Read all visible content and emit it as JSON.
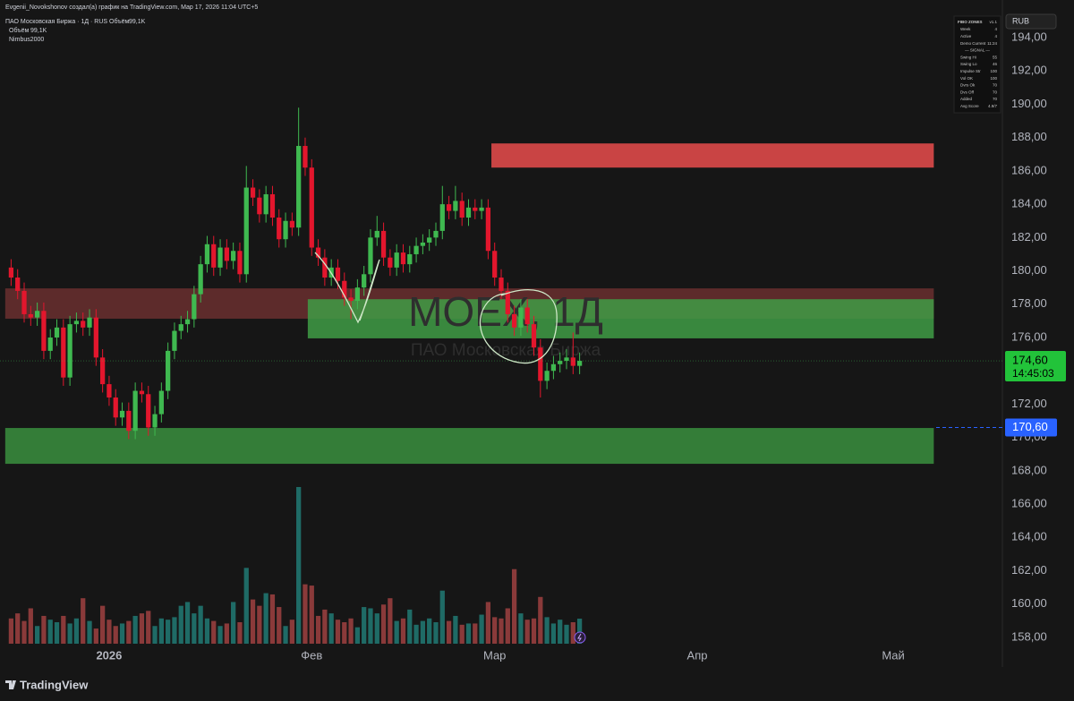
{
  "header": {
    "author_line": "Evgenii_Novokshonov создал(а) график на TradingView.com, Мар 17, 2026 11:04 UTC+5",
    "symbol": "ПАО Московская Биржа · 1Д · RUS",
    "volume_label": "Объём",
    "volume_value": "99,1K",
    "volume_label2": "Объём",
    "volume_value2": "99,1K",
    "indicator": "Nimbus2000",
    "currency": "RUB"
  },
  "watermark": {
    "ticker": "MOEX, 1Д",
    "name": "ПАО Московская Биржа"
  },
  "fibo_table": {
    "title": "FIBO ZONES",
    "version": "v1.1",
    "separator": "— SIGNAL —",
    "rows": [
      [
        "Week",
        "4"
      ],
      [
        "Active",
        "4"
      ],
      [
        "Demo Current",
        "11:24"
      ],
      [
        "Swing Hi",
        "55"
      ],
      [
        "Swing Lo",
        "46"
      ],
      [
        "Impulse Str",
        "100"
      ],
      [
        "Vol OK",
        "100"
      ],
      [
        "Dvrs Ok",
        "70"
      ],
      [
        "Dvs Off",
        "70"
      ],
      [
        "Added",
        "70"
      ],
      [
        "Avg Score",
        "4.9/7"
      ]
    ]
  },
  "chart_data": {
    "type": "candlestick",
    "x": [
      -15,
      -14,
      -13,
      -12,
      -11,
      -10,
      -9,
      -8,
      -7,
      -6,
      -5,
      -4,
      -3,
      -2,
      -1,
      0,
      1,
      2,
      3,
      4,
      5,
      6,
      7,
      8,
      9,
      10,
      11,
      12,
      13,
      14,
      15,
      16,
      17,
      18,
      19,
      20,
      21,
      22,
      23,
      24,
      25,
      26,
      27,
      28,
      29,
      30,
      31,
      32,
      33,
      34,
      35,
      36,
      37,
      38,
      39,
      40,
      41,
      42,
      43,
      44,
      45,
      46,
      47,
      48,
      49,
      50,
      51,
      52,
      53,
      54,
      55,
      56,
      57,
      58,
      59,
      60,
      61,
      62,
      63,
      64,
      65,
      66,
      67,
      68,
      69,
      70,
      71,
      72
    ],
    "open": [
      180.2,
      179.6,
      178.8,
      177.4,
      177.2,
      177.6,
      175.2,
      176.0,
      176.6,
      173.6,
      176.8,
      177.0,
      176.6,
      177.2,
      174.8,
      173.2,
      172.4,
      171.2,
      171.6,
      170.4,
      172.8,
      172.6,
      170.6,
      171.4,
      172.8,
      175.2,
      176.4,
      176.8,
      177.1,
      178.6,
      180.4,
      181.6,
      180.2,
      181.4,
      180.6,
      181.2,
      179.8,
      185.0,
      184.4,
      183.4,
      184.6,
      183.2,
      181.9,
      183.0,
      182.6,
      187.5,
      186.2,
      181.4,
      180.8,
      179.6,
      180.2,
      179.4,
      178.4,
      178.2,
      179.0,
      179.8,
      182.0,
      182.4,
      180.8,
      180.2,
      181.1,
      180.4,
      181.0,
      181.5,
      181.7,
      182.0,
      182.4,
      184.0,
      183.6,
      184.2,
      183.2,
      183.8,
      183.6,
      183.8,
      181.2,
      179.6,
      178.8,
      177.4,
      176.6,
      177.8,
      176.8,
      175.4,
      173.4,
      174.0,
      174.4,
      174.6,
      174.8,
      174.3
    ],
    "high": [
      180.7,
      180.1,
      179.3,
      177.9,
      178.1,
      178.1,
      176.5,
      177.1,
      177.1,
      177.3,
      177.5,
      177.5,
      177.7,
      177.7,
      175.3,
      173.7,
      172.9,
      172.1,
      172.1,
      173.3,
      173.3,
      173.1,
      171.9,
      173.3,
      175.7,
      176.9,
      177.3,
      177.6,
      179.1,
      180.9,
      182.1,
      182.1,
      181.9,
      181.9,
      181.7,
      181.7,
      186.3,
      185.5,
      184.9,
      185.1,
      185.1,
      183.7,
      183.5,
      183.5,
      189.8,
      188.0,
      186.7,
      181.9,
      181.3,
      180.7,
      180.7,
      179.9,
      178.9,
      179.5,
      180.3,
      182.5,
      183.3,
      182.9,
      181.3,
      181.6,
      181.6,
      181.5,
      182.0,
      182.2,
      182.5,
      182.9,
      185.1,
      184.5,
      185.1,
      184.7,
      184.3,
      184.3,
      184.3,
      184.3,
      181.7,
      180.1,
      179.3,
      177.9,
      178.3,
      178.3,
      177.3,
      175.9,
      174.5,
      174.9,
      175.1,
      175.3,
      176.3,
      175.1
    ],
    "low": [
      179.1,
      178.3,
      176.9,
      176.7,
      176.7,
      174.7,
      174.7,
      175.5,
      173.1,
      173.1,
      176.3,
      176.1,
      176.1,
      174.3,
      172.7,
      171.9,
      170.7,
      170.7,
      169.9,
      169.9,
      172.1,
      170.1,
      170.1,
      170.9,
      172.3,
      174.7,
      175.9,
      176.3,
      176.6,
      178.1,
      179.9,
      179.7,
      179.7,
      180.1,
      180.1,
      179.3,
      179.3,
      183.9,
      182.9,
      182.9,
      182.7,
      181.4,
      181.4,
      182.1,
      182.1,
      185.7,
      180.9,
      180.3,
      179.1,
      179.1,
      178.9,
      177.9,
      177.1,
      177.7,
      178.5,
      179.3,
      181.5,
      180.3,
      179.7,
      179.7,
      179.9,
      179.9,
      180.5,
      181.0,
      181.2,
      181.5,
      181.9,
      183.1,
      183.1,
      182.7,
      182.7,
      183.1,
      183.1,
      180.7,
      179.1,
      178.3,
      176.9,
      176.1,
      176.1,
      176.3,
      174.9,
      172.4,
      172.9,
      173.5,
      173.9,
      174.1,
      173.8,
      173.8
    ],
    "close": [
      179.6,
      178.8,
      177.4,
      177.2,
      177.6,
      175.2,
      176.0,
      176.6,
      173.6,
      176.8,
      177.0,
      176.6,
      177.2,
      174.8,
      173.2,
      172.4,
      171.2,
      171.6,
      170.4,
      172.8,
      172.6,
      170.6,
      171.4,
      172.8,
      175.2,
      176.4,
      176.8,
      177.1,
      178.6,
      180.4,
      181.6,
      180.2,
      181.4,
      180.6,
      181.2,
      179.8,
      185.0,
      184.4,
      183.4,
      184.6,
      183.2,
      181.9,
      183.0,
      182.6,
      187.5,
      186.2,
      181.4,
      180.8,
      179.6,
      180.2,
      179.4,
      178.4,
      178.2,
      179.0,
      179.8,
      182.0,
      182.4,
      180.8,
      180.2,
      181.1,
      180.4,
      181.0,
      181.5,
      181.7,
      182.0,
      182.4,
      184.0,
      183.6,
      184.2,
      183.2,
      183.8,
      183.6,
      183.8,
      181.2,
      179.6,
      178.8,
      177.4,
      176.6,
      177.8,
      176.8,
      175.4,
      173.4,
      174.0,
      174.4,
      174.6,
      174.8,
      174.3,
      174.6
    ],
    "volume": [
      100,
      120,
      90,
      140,
      70,
      110,
      95,
      85,
      110,
      80,
      100,
      180,
      90,
      60,
      150,
      95,
      70,
      80,
      90,
      110,
      120,
      130,
      70,
      100,
      95,
      105,
      150,
      165,
      120,
      150,
      100,
      90,
      70,
      80,
      165,
      85,
      300,
      175,
      150,
      200,
      195,
      145,
      70,
      95,
      620,
      235,
      230,
      110,
      135,
      120,
      95,
      85,
      100,
      65,
      145,
      140,
      120,
      155,
      180,
      90,
      100,
      135,
      75,
      90,
      100,
      85,
      210,
      90,
      110,
      75,
      80,
      80,
      115,
      165,
      105,
      100,
      140,
      295,
      120,
      95,
      100,
      185,
      105,
      80,
      95,
      75,
      85,
      99.1
    ],
    "up_color": "#3fb950",
    "down_color": "#e3162d",
    "volume_up_color": "#1f6b66",
    "volume_down_color": "#8a3a3a",
    "xlim": [
      -16.7,
      136.7
    ],
    "xticks": [
      {
        "value": 0,
        "label": "2026"
      },
      {
        "value": 31,
        "label": "Фев"
      },
      {
        "value": 59,
        "label": "Мар"
      },
      {
        "value": 90,
        "label": "Апр"
      },
      {
        "value": 120,
        "label": "Май"
      }
    ],
    "ylim": [
      157.46,
      196.26
    ],
    "yticks": [
      {
        "value": 158,
        "label": "158,00"
      },
      {
        "value": 160,
        "label": "160,00"
      },
      {
        "value": 162,
        "label": "162,00"
      },
      {
        "value": 164,
        "label": "164,00"
      },
      {
        "value": 166,
        "label": "166,00"
      },
      {
        "value": 168,
        "label": "168,00"
      },
      {
        "value": 170,
        "label": "170,00"
      },
      {
        "value": 172,
        "label": "172,00"
      },
      {
        "value": 174,
        "label": "174,00"
      },
      {
        "value": 176,
        "label": "176,00"
      },
      {
        "value": 178,
        "label": "178,00"
      },
      {
        "value": 180,
        "label": "180,00"
      },
      {
        "value": 182,
        "label": "182,00"
      },
      {
        "value": 184,
        "label": "184,00"
      },
      {
        "value": 186,
        "label": "186,00"
      },
      {
        "value": 188,
        "label": "188,00"
      },
      {
        "value": 190,
        "label": "190,00"
      },
      {
        "value": 192,
        "label": "192,00"
      },
      {
        "value": 194,
        "label": "194,00"
      }
    ],
    "volume_ylim": [
      0,
      1913
    ],
    "zones": [
      {
        "from": 58.5,
        "to": 126.2,
        "low": 186.2,
        "high": 187.65,
        "color": "#c94444"
      },
      {
        "from": -15.9,
        "to": 126.2,
        "low": 177.13,
        "high": 178.95,
        "color": "#8e3a3a"
      },
      {
        "from": 30.4,
        "to": 126.2,
        "low": 175.95,
        "high": 178.3,
        "color": "#3f9c45"
      },
      {
        "from": -15.9,
        "to": 126.2,
        "low": 168.42,
        "high": 170.57,
        "color": "#3a8f3e"
      }
    ],
    "last_price": {
      "value": 174.6,
      "label": "174,60"
    },
    "countdown": "14:45:03",
    "alert_level": {
      "value": 170.6,
      "label": "170,60"
    }
  },
  "footer": {
    "brand": "TradingView"
  }
}
